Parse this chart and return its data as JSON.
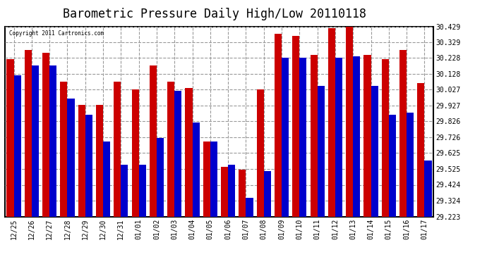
{
  "title": "Barometric Pressure Daily High/Low 20110118",
  "copyright": "Copyright 2011 Cartronics.com",
  "dates": [
    "12/25",
    "12/26",
    "12/27",
    "12/28",
    "12/29",
    "12/30",
    "12/31",
    "01/01",
    "01/02",
    "01/03",
    "01/04",
    "01/05",
    "01/06",
    "01/07",
    "01/08",
    "01/09",
    "01/10",
    "01/11",
    "01/12",
    "01/13",
    "01/14",
    "01/15",
    "01/16",
    "01/17"
  ],
  "highs": [
    30.22,
    30.28,
    30.26,
    30.08,
    29.93,
    29.93,
    30.08,
    30.03,
    30.18,
    30.08,
    30.04,
    29.7,
    29.54,
    29.52,
    30.03,
    30.38,
    30.37,
    30.25,
    30.42,
    30.43,
    30.25,
    30.22,
    30.28,
    30.07
  ],
  "lows": [
    30.12,
    30.18,
    30.18,
    29.97,
    29.87,
    29.7,
    29.55,
    29.55,
    29.72,
    30.02,
    29.82,
    29.7,
    29.55,
    29.34,
    29.51,
    30.23,
    30.23,
    30.05,
    30.23,
    30.24,
    30.05,
    29.87,
    29.88,
    29.58
  ],
  "high_color": "#cc0000",
  "low_color": "#0000cc",
  "ylim_min": 29.223,
  "ylim_max": 30.429,
  "yticks": [
    29.223,
    29.324,
    29.424,
    29.525,
    29.625,
    29.726,
    29.826,
    29.927,
    30.027,
    30.128,
    30.228,
    30.329,
    30.429
  ],
  "ytick_labels": [
    "29.223",
    "29.324",
    "29.424",
    "29.525",
    "29.625",
    "29.726",
    "29.826",
    "29.927",
    "30.027",
    "30.128",
    "30.228",
    "30.329",
    "30.429"
  ],
  "background_color": "#ffffff",
  "plot_bg_color": "#ffffff",
  "grid_color": "#999999",
  "title_fontsize": 12,
  "bar_width": 0.4,
  "figwidth": 6.9,
  "figheight": 3.75,
  "dpi": 100
}
